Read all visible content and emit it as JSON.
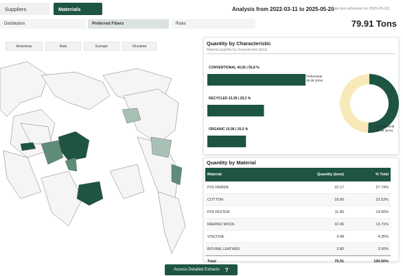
{
  "tabs": [
    "Suppliers",
    "Materials"
  ],
  "header": {
    "title": "Analysis from 2022-03-11 to 2025-05-20",
    "note": "(Data last refreshed on 2025-05-22)",
    "total": "79.91 Tons"
  },
  "subtabs": [
    "Distribution",
    "Preferred Fibers",
    "Risks"
  ],
  "regions": [
    "Americas",
    "Asia",
    "Europe",
    "Oceania"
  ],
  "characteristic": {
    "title": "Quantity by Characteristic",
    "subtitle": "Material quantity by characteristic (tons)",
    "bars": [
      {
        "label": "CONVENTIONAL 40,56 | 50,8 %",
        "value": 40.56
      },
      {
        "label": "RECYCLED 23,39 | 29,3 %",
        "value": 23.39
      },
      {
        "label": "ORGANIC 15,96 | 20,0 %",
        "value": 15.96
      }
    ],
    "donut": [
      {
        "name": "Conventional",
        "detail": "40.56 (51%)",
        "value": 40.56,
        "color": "#1d5443"
      },
      {
        "name": "Preferential",
        "detail": "39.35 (49%)",
        "value": 39.35,
        "color": "#f8eab8"
      }
    ],
    "bar_color": "#1d5443"
  },
  "table": {
    "title": "Quantity by Material",
    "columns": [
      "Material",
      "Quantity (tons)",
      "% Total"
    ],
    "rows": [
      [
        "POLYAMIDE",
        "22.17",
        "27.74%"
      ],
      [
        "COTTON",
        "18.80",
        "23.53%"
      ],
      [
        "POLYESTER",
        "11.90",
        "14.90%"
      ],
      [
        "MERINO WOOL",
        "10.96",
        "13.71%"
      ],
      [
        "VISCOSE",
        "3.48",
        "4.35%"
      ],
      [
        "BOVINE LEATHER",
        "2.80",
        "3.50%"
      ]
    ],
    "total": [
      "Total",
      "79.91",
      "100.00%"
    ]
  },
  "button": {
    "label": "Access Detailed Extracts",
    "icon": "?"
  }
}
